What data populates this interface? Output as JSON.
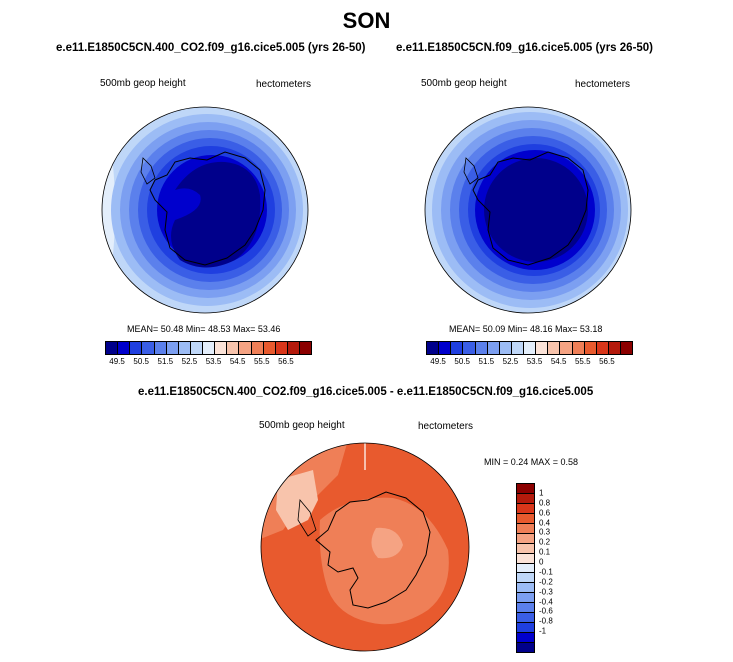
{
  "title": "SON",
  "panel_left": {
    "subtitle": "e.e11.E1850C5CN.400_CO2.f09_g16.cice5.005 (yrs 26-50)",
    "variable": "500mb geop height",
    "units": "hectometers",
    "stats": "MEAN=  50.48  Min=  48.53  Max=  53.46"
  },
  "panel_right": {
    "subtitle": "e.e11.E1850C5CN.f09_g16.cice5.005 (yrs 26-50)",
    "variable": "500mb geop height",
    "units": "hectometers",
    "stats": "MEAN=  50.09  Min=  48.16  Max=  53.18"
  },
  "panel_diff": {
    "subtitle": "e.e11.E1850C5CN.400_CO2.f09_g16.cice5.005 - e.e11.E1850C5CN.f09_g16.cice5.005",
    "variable": "500mb geop height",
    "units": "hectometers",
    "stats": "MIN =   0.24 MAX =   0.58"
  },
  "colorbar_abs": {
    "colors": [
      "#00008b",
      "#0000cd",
      "#1f3fe0",
      "#3a5ee6",
      "#5b80ec",
      "#7c9ff1",
      "#9cbcf5",
      "#bfd7f8",
      "#e3eefb",
      "#fbe3d8",
      "#f8c4ac",
      "#f5a383",
      "#ef7f57",
      "#e85a2e",
      "#d9361a",
      "#b41a0c",
      "#8b0000"
    ],
    "tick_labels": [
      "49.5",
      "50.5",
      "51.5",
      "52.5",
      "53.5",
      "54.5",
      "55.5",
      "56.5"
    ]
  },
  "colorbar_diff": {
    "colors": [
      "#00008b",
      "#0000cd",
      "#1f3fe0",
      "#3a5ee6",
      "#5b80ec",
      "#7c9ff1",
      "#9cbcf5",
      "#bfd7f8",
      "#e3eefb",
      "#fbe3d8",
      "#f8c4ac",
      "#f5a383",
      "#ef7f57",
      "#e85a2e",
      "#d9361a",
      "#b41a0c",
      "#8b0000"
    ],
    "tick_labels": [
      "1",
      "0.8",
      "0.6",
      "0.4",
      "0.3",
      "0.2",
      "0.1",
      "0",
      "-0.1",
      "-0.2",
      "-0.3",
      "-0.4",
      "-0.6",
      "-0.8",
      "-1"
    ]
  }
}
